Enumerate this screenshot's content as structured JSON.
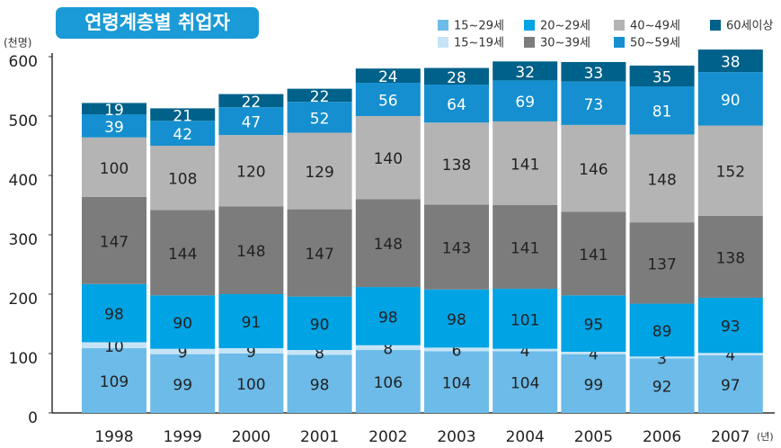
{
  "chart_data": {
    "type": "stacked_bar",
    "title": "연령계층별 취업자",
    "y_label": "(천명)",
    "x_label": "(년)",
    "categories": [
      "1998",
      "1999",
      "2000",
      "2001",
      "2002",
      "2003",
      "2004",
      "2005",
      "2006",
      "2007"
    ],
    "series": [
      {
        "name": "15~29세",
        "color": "#6cbbe9",
        "values": [
          109,
          99,
          100,
          98,
          106,
          104,
          104,
          99,
          92,
          97
        ]
      },
      {
        "name": "15~19세",
        "color": "#c6e4f6",
        "values": [
          10,
          9,
          9,
          8,
          8,
          6,
          4,
          4,
          3,
          4
        ]
      },
      {
        "name": "20~29세",
        "color": "#00a3e3",
        "values": [
          98,
          90,
          91,
          90,
          98,
          98,
          101,
          95,
          89,
          93
        ]
      },
      {
        "name": "30~39세",
        "color": "#7c7c7c",
        "values": [
          147,
          144,
          148,
          147,
          148,
          143,
          141,
          141,
          137,
          138
        ]
      },
      {
        "name": "40~49세",
        "color": "#b4b4b4",
        "values": [
          100,
          108,
          120,
          129,
          140,
          138,
          141,
          146,
          148,
          152
        ]
      },
      {
        "name": "50~59세",
        "color": "#158fcf",
        "values": [
          39,
          42,
          47,
          52,
          56,
          64,
          69,
          73,
          81,
          90
        ]
      },
      {
        "name": "60세이상",
        "color": "#00618a",
        "values": [
          19,
          21,
          22,
          22,
          24,
          28,
          32,
          33,
          35,
          38
        ]
      }
    ],
    "ylim": [
      0,
      600
    ],
    "yticks": [
      0,
      100,
      200,
      300,
      400,
      500,
      600
    ],
    "grid": false
  }
}
